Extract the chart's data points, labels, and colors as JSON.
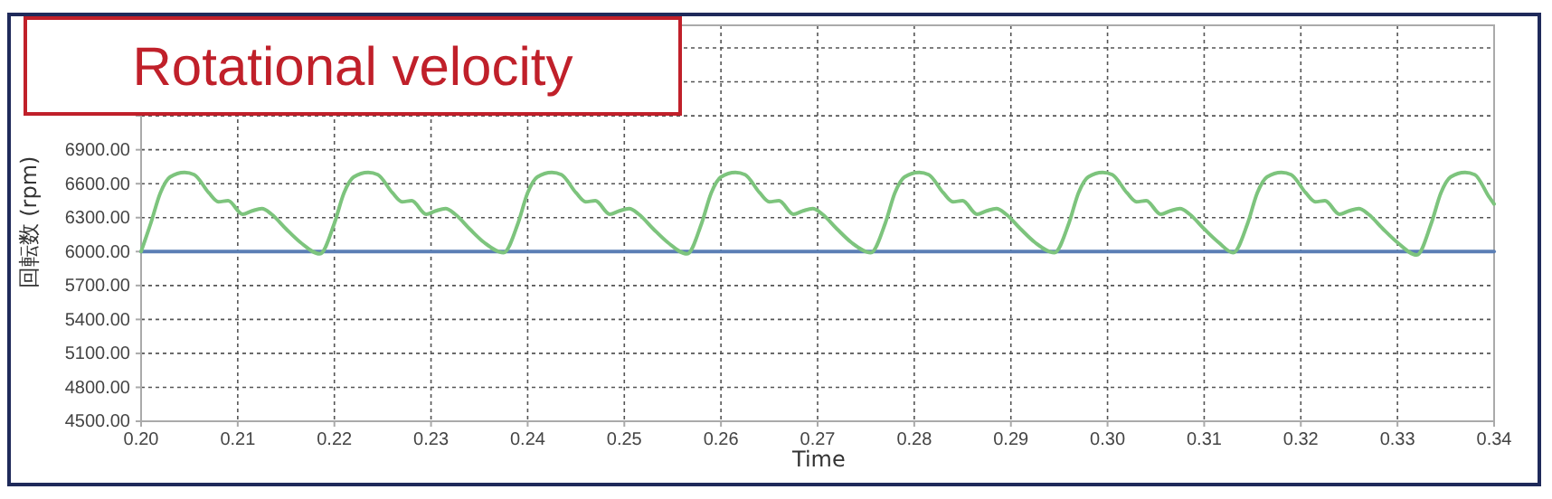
{
  "chart_data": {
    "type": "line",
    "title": "Rotational velocity",
    "xlabel": "Time",
    "ylabel": "回転数 (rpm)",
    "xlim": [
      0.2,
      0.34
    ],
    "xticks": [
      {
        "value": 0.2,
        "label": "0.20"
      },
      {
        "value": 0.21,
        "label": "0.21"
      },
      {
        "value": 0.22,
        "label": "0.22"
      },
      {
        "value": 0.23,
        "label": "0.23"
      },
      {
        "value": 0.24,
        "label": "0.24"
      },
      {
        "value": 0.25,
        "label": "0.25"
      },
      {
        "value": 0.26,
        "label": "0.26"
      },
      {
        "value": 0.27,
        "label": "0.27"
      },
      {
        "value": 0.28,
        "label": "0.28"
      },
      {
        "value": 0.29,
        "label": "0.29"
      },
      {
        "value": 0.3,
        "label": "0.30"
      },
      {
        "value": 0.31,
        "label": "0.31"
      },
      {
        "value": 0.32,
        "label": "0.32"
      },
      {
        "value": 0.33,
        "label": "0.33"
      },
      {
        "value": 0.34,
        "label": "0.34"
      }
    ],
    "ylim": [
      4500,
      8000
    ],
    "yticks": [
      {
        "value": 4500,
        "label": "4500.00"
      },
      {
        "value": 4800,
        "label": "4800.00"
      },
      {
        "value": 5100,
        "label": "5100.00"
      },
      {
        "value": 5400,
        "label": "5400.00"
      },
      {
        "value": 5700,
        "label": "5700.00"
      },
      {
        "value": 6000,
        "label": "6000.00"
      },
      {
        "value": 6300,
        "label": "6300.00"
      },
      {
        "value": 6600,
        "label": "6600.00"
      },
      {
        "value": 6900,
        "label": "6900.00"
      },
      {
        "value": 7200,
        "label": null
      },
      {
        "value": 7500,
        "label": null
      },
      {
        "value": 7800,
        "label": null
      }
    ],
    "grid": true,
    "line_style": "solid",
    "series": [
      {
        "color": "#5b7fb5",
        "x": [
          0.2,
          0.34
        ],
        "values": [
          6000,
          6000
        ]
      },
      {
        "color": "#7dc47d",
        "x": [
          0.2,
          0.201,
          0.202,
          0.203,
          0.2045,
          0.2055,
          0.207,
          0.208,
          0.209,
          0.2105,
          0.2115,
          0.2125,
          0.2135,
          0.215,
          0.2165,
          0.2185,
          0.22,
          0.221,
          0.222,
          0.2235,
          0.2245,
          0.226,
          0.227,
          0.228,
          0.2295,
          0.2305,
          0.2315,
          0.2325,
          0.234,
          0.2355,
          0.2375,
          0.239,
          0.24,
          0.241,
          0.2425,
          0.2435,
          0.245,
          0.246,
          0.247,
          0.2485,
          0.2495,
          0.2505,
          0.2515,
          0.253,
          0.2545,
          0.2565,
          0.258,
          0.259,
          0.26,
          0.2615,
          0.2625,
          0.264,
          0.265,
          0.266,
          0.2675,
          0.2685,
          0.2695,
          0.2705,
          0.272,
          0.2735,
          0.2755,
          0.277,
          0.278,
          0.279,
          0.2805,
          0.2815,
          0.283,
          0.284,
          0.285,
          0.2865,
          0.2875,
          0.2885,
          0.2895,
          0.291,
          0.2925,
          0.2945,
          0.296,
          0.297,
          0.298,
          0.2995,
          0.3005,
          0.302,
          0.303,
          0.304,
          0.3055,
          0.3065,
          0.3075,
          0.3085,
          0.31,
          0.3115,
          0.313,
          0.3145,
          0.3155,
          0.3165,
          0.318,
          0.319,
          0.3205,
          0.3215,
          0.3225,
          0.324,
          0.325,
          0.326,
          0.327,
          0.3285,
          0.33,
          0.332,
          0.3335,
          0.3345,
          0.3355,
          0.337,
          0.338,
          0.3395,
          0.34
        ],
        "values": [
          6000,
          6250,
          6520,
          6660,
          6700,
          6680,
          6520,
          6440,
          6450,
          6330,
          6360,
          6380,
          6330,
          6200,
          6080,
          5980,
          6250,
          6520,
          6660,
          6700,
          6680,
          6520,
          6440,
          6450,
          6330,
          6360,
          6380,
          6330,
          6200,
          6080,
          5990,
          6250,
          6520,
          6660,
          6700,
          6680,
          6520,
          6440,
          6450,
          6330,
          6360,
          6380,
          6330,
          6200,
          6080,
          5980,
          6250,
          6520,
          6660,
          6700,
          6680,
          6520,
          6440,
          6450,
          6330,
          6360,
          6380,
          6330,
          6200,
          6080,
          5990,
          6250,
          6520,
          6660,
          6700,
          6680,
          6520,
          6440,
          6450,
          6330,
          6360,
          6380,
          6330,
          6200,
          6080,
          5990,
          6250,
          6520,
          6660,
          6700,
          6680,
          6520,
          6440,
          6450,
          6330,
          6360,
          6380,
          6330,
          6200,
          6080,
          5990,
          6250,
          6520,
          6660,
          6700,
          6680,
          6520,
          6440,
          6450,
          6330,
          6360,
          6380,
          6330,
          6200,
          6080,
          5970,
          6250,
          6520,
          6660,
          6700,
          6680,
          6480,
          6420
        ]
      }
    ]
  }
}
